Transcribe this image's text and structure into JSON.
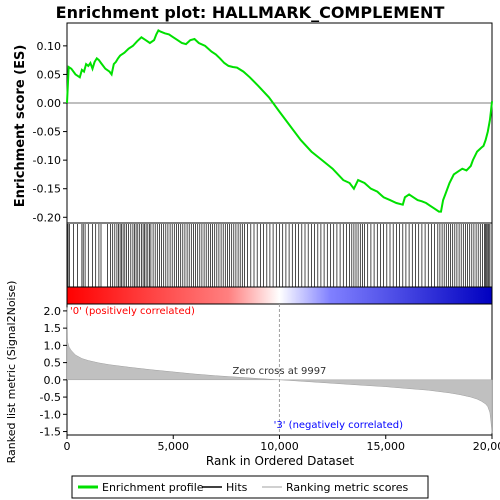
{
  "chart_data": {
    "type": "line",
    "title": "Enrichment plot: HALLMARK_COMPLEMENT",
    "es_panel": {
      "ylabel": "Enrichment score (ES)",
      "ylim": [
        -0.21,
        0.14
      ],
      "yticks": [
        -0.2,
        -0.15,
        -0.1,
        -0.05,
        0.0,
        0.05,
        0.1
      ],
      "ytick_labels": [
        "-0.20",
        "-0.15",
        "-0.10",
        "-0.05",
        "0.00",
        "0.05",
        "0.10"
      ],
      "series": [
        {
          "name": "Enrichment profile",
          "color": "#00e000",
          "x": [
            0,
            80,
            200,
            400,
            600,
            700,
            800,
            900,
            1000,
            1100,
            1200,
            1300,
            1400,
            1500,
            1600,
            1800,
            2000,
            2100,
            2200,
            2300,
            2400,
            2500,
            2700,
            2900,
            3100,
            3300,
            3500,
            3700,
            3900,
            4100,
            4200,
            4300,
            4400,
            4600,
            4800,
            5000,
            5200,
            5400,
            5600,
            5800,
            6000,
            6200,
            6500,
            6800,
            7000,
            7200,
            7400,
            7600,
            7800,
            8000,
            8300,
            8600,
            9000,
            9500,
            9997,
            10500,
            11000,
            11500,
            12000,
            12500,
            13000,
            13300,
            13500,
            13700,
            14000,
            14300,
            14600,
            14900,
            15200,
            15500,
            15800,
            15900,
            16100,
            16300,
            16500,
            16700,
            16900,
            17100,
            17300,
            17500,
            17600,
            17700,
            17800,
            18000,
            18200,
            18400,
            18600,
            18800,
            19000,
            19100,
            19300,
            19500,
            19600,
            19700,
            19800,
            19900,
            19950,
            20000
          ],
          "y": [
            0.0,
            0.063,
            0.06,
            0.05,
            0.045,
            0.058,
            0.055,
            0.068,
            0.065,
            0.07,
            0.06,
            0.072,
            0.078,
            0.075,
            0.07,
            0.06,
            0.055,
            0.05,
            0.068,
            0.072,
            0.078,
            0.083,
            0.088,
            0.095,
            0.1,
            0.108,
            0.115,
            0.11,
            0.105,
            0.11,
            0.12,
            0.127,
            0.125,
            0.122,
            0.12,
            0.115,
            0.11,
            0.105,
            0.103,
            0.11,
            0.112,
            0.105,
            0.1,
            0.09,
            0.085,
            0.078,
            0.07,
            0.065,
            0.063,
            0.062,
            0.055,
            0.045,
            0.03,
            0.01,
            -0.015,
            -0.04,
            -0.065,
            -0.085,
            -0.1,
            -0.115,
            -0.135,
            -0.14,
            -0.15,
            -0.135,
            -0.14,
            -0.15,
            -0.155,
            -0.165,
            -0.17,
            -0.175,
            -0.178,
            -0.165,
            -0.16,
            -0.165,
            -0.17,
            -0.172,
            -0.175,
            -0.18,
            -0.185,
            -0.19,
            -0.19,
            -0.17,
            -0.16,
            -0.14,
            -0.125,
            -0.12,
            -0.115,
            -0.118,
            -0.11,
            -0.1,
            -0.085,
            -0.078,
            -0.075,
            -0.065,
            -0.05,
            -0.03,
            -0.015,
            0.003
          ]
        }
      ]
    },
    "hits_panel": {
      "positions": [
        20,
        50,
        120,
        300,
        500,
        700,
        760,
        850,
        1000,
        1200,
        1350,
        1500,
        1600,
        1900,
        2050,
        2150,
        2250,
        2350,
        2420,
        2500,
        2560,
        2640,
        2720,
        2800,
        2900,
        3000,
        3100,
        3180,
        3250,
        3330,
        3420,
        3500,
        3580,
        3650,
        3720,
        3800,
        3880,
        3950,
        4050,
        4150,
        4250,
        4350,
        4450,
        4550,
        4650,
        4750,
        4850,
        4950,
        5050,
        5150,
        5250,
        5350,
        5450,
        5550,
        5650,
        5750,
        5850,
        5950,
        6050,
        6150,
        6250,
        6350,
        6450,
        6550,
        6650,
        6750,
        6850,
        6950,
        7050,
        7150,
        7250,
        7350,
        7450,
        7550,
        7650,
        7750,
        7850,
        7950,
        8050,
        8150,
        8250,
        8350,
        8500,
        8650,
        8800,
        8950,
        9100,
        9250,
        9400,
        9550,
        9700,
        9850,
        10000,
        10150,
        10300,
        10450,
        10600,
        10750,
        10900,
        11050,
        11200,
        11350,
        11500,
        11650,
        11800,
        11950,
        12100,
        12250,
        12400,
        12550,
        12700,
        12850,
        13000,
        13150,
        13300,
        13400,
        13500,
        13600,
        13700,
        13800,
        13900,
        14000,
        14150,
        14300,
        14450,
        14600,
        14750,
        14900,
        15050,
        15200,
        15350,
        15500,
        15650,
        15800,
        15950,
        16100,
        16250,
        16400,
        16550,
        16700,
        16850,
        17000,
        17150,
        17300,
        17450,
        17550,
        17650,
        17750,
        17850,
        17950,
        18050,
        18150,
        18250,
        18350,
        18450,
        18550,
        18650,
        18750,
        18850,
        18950,
        19050,
        19150,
        19250,
        19350,
        19450,
        19550,
        19650,
        19700,
        19750,
        19800,
        19850,
        19900
      ]
    },
    "metric_panel": {
      "ylabel": "Ranked list metric (Signal2Noise)",
      "ylim": [
        -1.6,
        2.2
      ],
      "yticks": [
        -1.5,
        -1.0,
        -0.5,
        0.0,
        0.5,
        1.0,
        1.5,
        2.0
      ],
      "ytick_labels": [
        "-1.5",
        "-1.0",
        "-0.5",
        "0.0",
        "0.5",
        "1.0",
        "1.5",
        "2.0"
      ],
      "x": [
        0,
        30,
        100,
        200,
        400,
        700,
        1000,
        1500,
        2000,
        3000,
        4000,
        5000,
        6000,
        7000,
        8000,
        9000,
        9997,
        11000,
        12000,
        13000,
        14000,
        15000,
        16000,
        17000,
        18000,
        18500,
        19000,
        19300,
        19500,
        19700,
        19800,
        19900,
        19950,
        20000
      ],
      "values": [
        2.1,
        1.1,
        0.95,
        0.85,
        0.72,
        0.62,
        0.56,
        0.49,
        0.44,
        0.36,
        0.29,
        0.23,
        0.17,
        0.12,
        0.08,
        0.04,
        0.0,
        -0.04,
        -0.08,
        -0.12,
        -0.16,
        -0.2,
        -0.25,
        -0.3,
        -0.38,
        -0.43,
        -0.5,
        -0.56,
        -0.62,
        -0.7,
        -0.78,
        -0.95,
        -1.2,
        -1.55
      ],
      "annotations": {
        "zero_cross": "Zero cross at 9997",
        "positive": "'0' (positively correlated)",
        "negative": "'3' (negatively correlated)"
      },
      "zero_cross_rank": 9997
    },
    "xlabel": "Rank in Ordered Dataset",
    "xlim": [
      0,
      20000
    ],
    "xticks": [
      0,
      5000,
      10000,
      15000,
      20000
    ],
    "xtick_labels": [
      "0",
      "5,000",
      "10,000",
      "15,000",
      "20,000"
    ],
    "legend": {
      "placement": "bottom",
      "entries": [
        {
          "label": "Enrichment profile",
          "color": "#00e000"
        },
        {
          "label": "Hits",
          "color": "#000000"
        },
        {
          "label": "Ranking metric scores",
          "color": "#c0c0c0"
        }
      ]
    },
    "colors": {
      "positive": "#ff0000",
      "neutral": "#ffffff",
      "negative": "#0000c0",
      "metric_fill": "#c0c0c0",
      "positive_text": "#ff0000",
      "negative_text": "#0000ff"
    }
  }
}
